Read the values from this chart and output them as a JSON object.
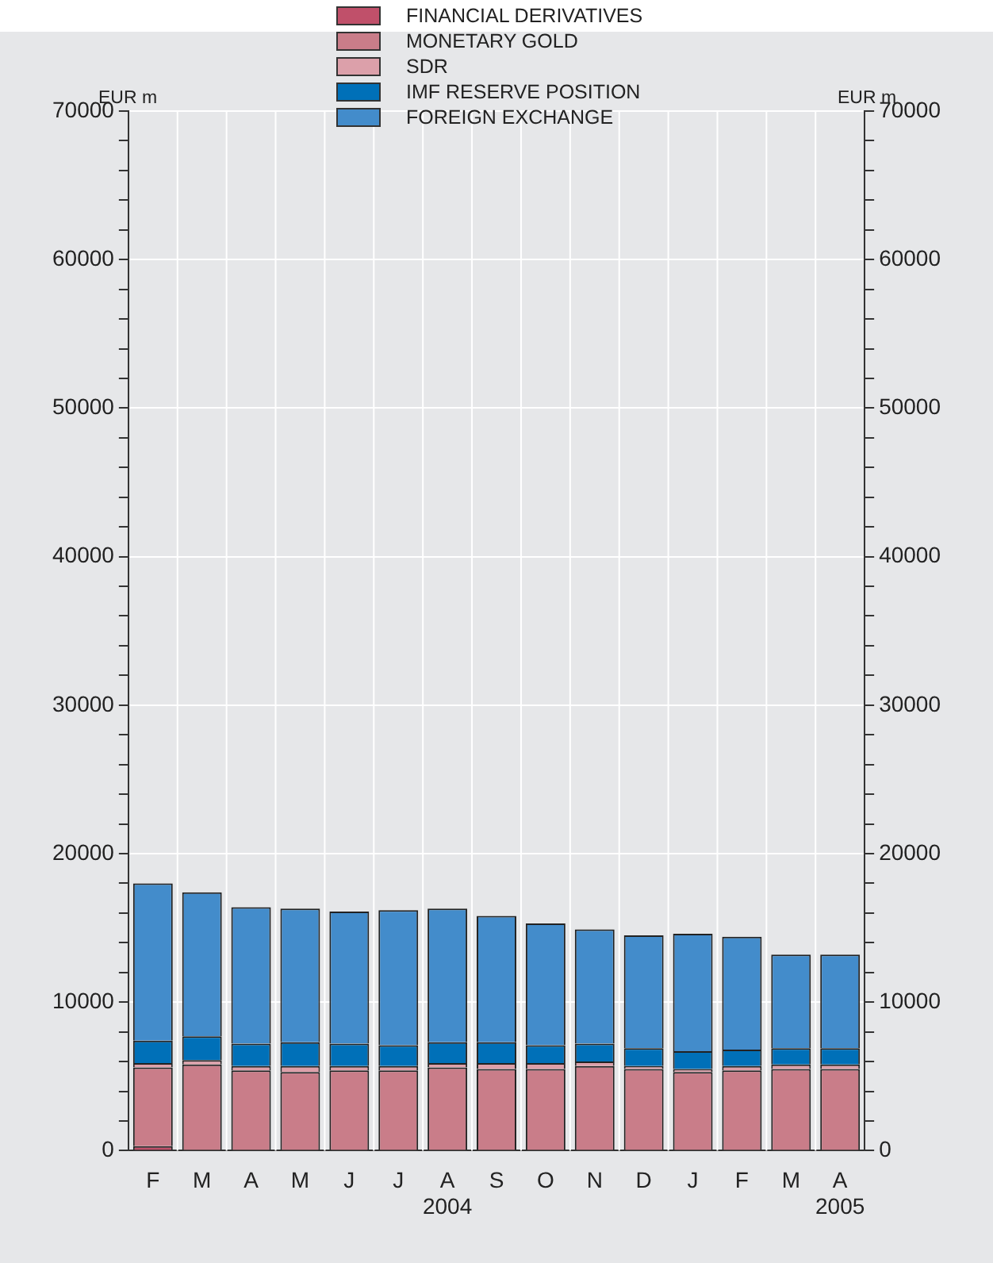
{
  "chart_data": {
    "type": "bar",
    "stacked": true,
    "ylabel": "EUR m",
    "y2label": "EUR m",
    "categories": [
      "F",
      "M",
      "A",
      "M",
      "J",
      "J",
      "A",
      "S",
      "O",
      "N",
      "D",
      "J",
      "F",
      "M",
      "A"
    ],
    "series": [
      {
        "name": "FINANCIAL DERIVATIVES",
        "color": "#c0506a",
        "values": [
          300,
          null,
          0,
          0,
          0,
          0,
          0,
          0,
          0,
          0,
          0,
          0,
          0,
          0,
          0
        ]
      },
      {
        "name": "MONETARY GOLD",
        "color": "#c97d89",
        "values": [
          5300,
          5800,
          5400,
          5300,
          5400,
          5400,
          5600,
          5500,
          5500,
          5700,
          5500,
          5300,
          5400,
          5500,
          5500
        ]
      },
      {
        "name": "SDR",
        "color": "#dca0aa",
        "values": [
          300,
          300,
          300,
          400,
          300,
          300,
          300,
          400,
          400,
          300,
          200,
          200,
          300,
          300,
          300
        ]
      },
      {
        "name": "IMF RESERVE POSITION",
        "color": "#0070b8",
        "values": [
          1500,
          1600,
          1500,
          1600,
          1500,
          1400,
          1400,
          1400,
          1200,
          1200,
          1200,
          1200,
          1100,
          1100,
          1100
        ]
      },
      {
        "name": "FOREIGN EXCHANGE",
        "color": "#438ccb",
        "values": [
          10600,
          9700,
          9200,
          9000,
          8900,
          9100,
          9000,
          8500,
          8200,
          7700,
          7600,
          7900,
          7600,
          6300,
          6300
        ]
      }
    ],
    "ylim": [
      0,
      70000
    ],
    "y2lim": [
      0,
      70000
    ],
    "yticks": [
      0,
      {
        "value": 2000,
        "label": null
      },
      {
        "value": 4000,
        "label": null
      },
      {
        "value": 6000,
        "label": null
      },
      {
        "value": 8000,
        "label": null
      },
      10000,
      {
        "value": 12000,
        "label": null
      },
      {
        "value": 14000,
        "label": null
      },
      {
        "value": 16000,
        "label": null
      },
      {
        "value": 18000,
        "label": null
      },
      20000,
      {
        "value": 22000,
        "label": null
      },
      {
        "value": 24000,
        "label": null
      },
      {
        "value": 26000,
        "label": null
      },
      {
        "value": 28000,
        "label": null
      },
      30000,
      {
        "value": 32000,
        "label": null
      },
      {
        "value": 34000,
        "label": null
      },
      {
        "value": 36000,
        "label": null
      },
      {
        "value": 38000,
        "label": null
      },
      40000,
      {
        "value": 42000,
        "label": null
      },
      {
        "value": 44000,
        "label": null
      },
      {
        "value": 46000,
        "label": null
      },
      {
        "value": 48000,
        "label": null
      },
      50000,
      {
        "value": 52000,
        "label": null
      },
      {
        "value": 54000,
        "label": null
      },
      {
        "value": 56000,
        "label": null
      },
      {
        "value": 58000,
        "label": null
      },
      60000,
      {
        "value": 62000,
        "label": null
      },
      {
        "value": 64000,
        "label": null
      },
      {
        "value": 66000,
        "label": null
      },
      {
        "value": 68000,
        "label": null
      },
      70000
    ],
    "y2ticks": [
      0,
      {
        "value": 2000,
        "label": null
      },
      {
        "value": 4000,
        "label": null
      },
      {
        "value": 6000,
        "label": null
      },
      {
        "value": 8000,
        "label": null
      },
      10000,
      {
        "value": 12000,
        "label": null
      },
      {
        "value": 14000,
        "label": null
      },
      {
        "value": 16000,
        "label": null
      },
      {
        "value": 18000,
        "label": null
      },
      20000,
      {
        "value": 22000,
        "label": null
      },
      {
        "value": 24000,
        "label": null
      },
      {
        "value": 26000,
        "label": null
      },
      {
        "value": 28000,
        "label": null
      },
      30000,
      {
        "value": 32000,
        "label": null
      },
      {
        "value": 34000,
        "label": null
      },
      {
        "value": 36000,
        "label": null
      },
      {
        "value": 38000,
        "label": null
      },
      40000,
      {
        "value": 42000,
        "label": null
      },
      {
        "value": 44000,
        "label": null
      },
      {
        "value": 46000,
        "label": null
      },
      {
        "value": 48000,
        "label": null
      },
      50000,
      {
        "value": 52000,
        "label": null
      },
      {
        "value": 54000,
        "label": null
      },
      {
        "value": 56000,
        "label": null
      },
      {
        "value": 58000,
        "label": null
      },
      60000,
      {
        "value": 62000,
        "label": null
      },
      {
        "value": 64000,
        "label": null
      },
      {
        "value": 66000,
        "label": null
      },
      {
        "value": 68000,
        "label": null
      },
      70000
    ],
    "grid": true,
    "legend": "top",
    "annotations": [
      "2004",
      "2005"
    ]
  }
}
